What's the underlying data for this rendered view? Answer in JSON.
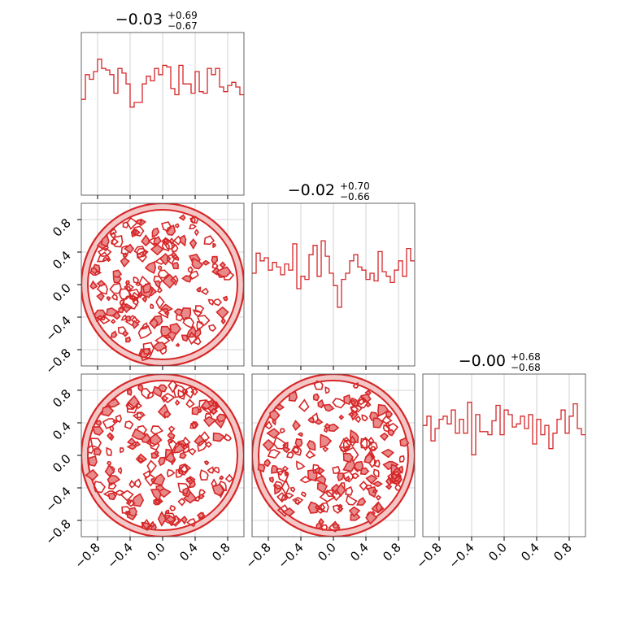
{
  "figure": {
    "type": "corner-plot"
  },
  "colors": {
    "series": "#d62728",
    "fill_light": "#f4c7c7",
    "fill_mid": "#e8898a",
    "grid": "#c8c8c8",
    "axis": "#555555"
  },
  "tick_labels": [
    "−0.8",
    "−0.4",
    "0.0",
    "0.4",
    "0.8"
  ],
  "chart_data": [
    {
      "type": "histogram",
      "panel": "diag-0",
      "title_main": "−0.03",
      "title_up": "+0.69",
      "title_down": "−0.67",
      "xlim": [
        -1,
        1
      ],
      "bins": 40,
      "values": [
        0.62,
        0.78,
        0.75,
        0.8,
        0.88,
        0.82,
        0.81,
        0.78,
        0.66,
        0.82,
        0.79,
        0.72,
        0.57,
        0.6,
        0.6,
        0.72,
        0.77,
        0.74,
        0.82,
        0.78,
        0.84,
        0.83,
        0.69,
        0.65,
        0.84,
        0.72,
        0.72,
        0.66,
        0.8,
        0.67,
        0.66,
        0.82,
        0.78,
        0.82,
        0.7,
        0.67,
        0.71,
        0.73,
        0.7,
        0.65
      ]
    },
    {
      "type": "histogram",
      "panel": "diag-1",
      "title_main": "−0.02",
      "title_up": "+0.70",
      "title_down": "−0.66",
      "xlim": [
        -1,
        1
      ],
      "bins": 40,
      "values": [
        0.6,
        0.73,
        0.68,
        0.7,
        0.62,
        0.67,
        0.64,
        0.59,
        0.66,
        0.62,
        0.79,
        0.5,
        0.58,
        0.56,
        0.72,
        0.78,
        0.58,
        0.81,
        0.71,
        0.6,
        0.52,
        0.38,
        0.56,
        0.6,
        0.68,
        0.72,
        0.64,
        0.62,
        0.56,
        0.6,
        0.55,
        0.74,
        0.61,
        0.58,
        0.54,
        0.62,
        0.68,
        0.58,
        0.76,
        0.68
      ]
    },
    {
      "type": "histogram",
      "panel": "diag-2",
      "title_main": "−0.00",
      "title_up": "+0.68",
      "title_down": "−0.68",
      "xlim": [
        -1,
        1
      ],
      "bins": 40,
      "values": [
        0.72,
        0.78,
        0.62,
        0.7,
        0.76,
        0.78,
        0.73,
        0.82,
        0.67,
        0.76,
        0.67,
        0.87,
        0.53,
        0.79,
        0.68,
        0.68,
        0.66,
        0.75,
        0.85,
        0.66,
        0.82,
        0.79,
        0.71,
        0.73,
        0.78,
        0.7,
        0.79,
        0.6,
        0.76,
        0.66,
        0.72,
        0.57,
        0.67,
        0.76,
        0.82,
        0.67,
        0.78,
        0.86,
        0.7,
        0.66
      ]
    },
    {
      "type": "contour",
      "panel": "x0-vs-x1",
      "xlim": [
        -1,
        1
      ],
      "ylim": [
        -1,
        1
      ],
      "support": "unit-disk"
    },
    {
      "type": "contour",
      "panel": "x0-vs-x2",
      "xlim": [
        -1,
        1
      ],
      "ylim": [
        -1,
        1
      ],
      "support": "unit-disk"
    },
    {
      "type": "contour",
      "panel": "x1-vs-x2",
      "xlim": [
        -1,
        1
      ],
      "ylim": [
        -1,
        1
      ],
      "support": "unit-disk"
    }
  ]
}
